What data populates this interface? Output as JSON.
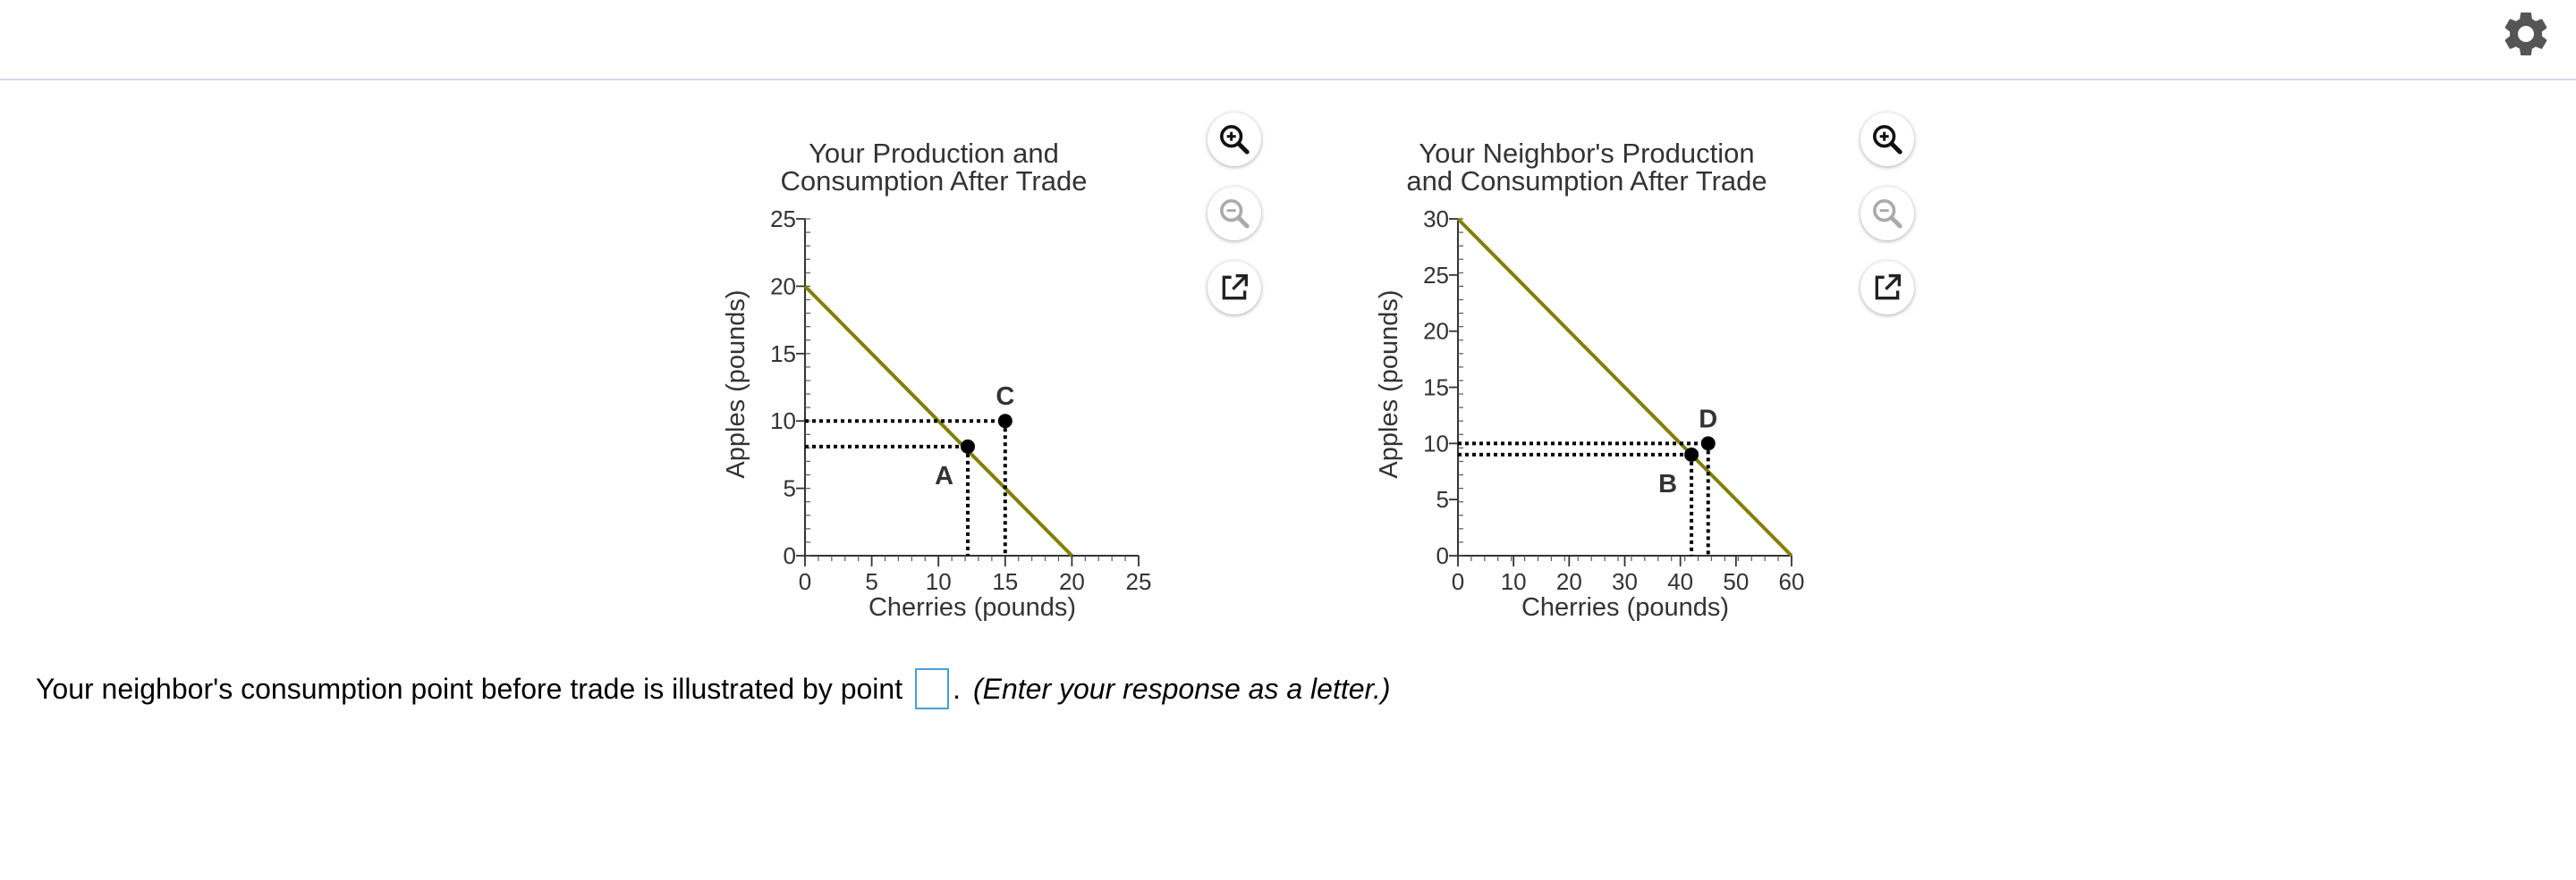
{
  "settings": {
    "icon": "gear-icon"
  },
  "charts": [
    {
      "title_line1": "Your Production and",
      "title_line2": "Consumption After Trade",
      "xlabel": "Cherries (pounds)",
      "ylabel": "Apples (pounds)",
      "controls": [
        "zoom-in-icon",
        "zoom-out-icon",
        "pop-out-icon"
      ]
    },
    {
      "title_line1": "Your Neighbor's Production",
      "title_line2": "and Consumption After Trade",
      "xlabel": "Cherries (pounds)",
      "ylabel": "Apples (pounds)",
      "controls": [
        "zoom-in-icon",
        "zoom-out-icon",
        "pop-out-icon"
      ]
    }
  ],
  "chart_data": [
    {
      "type": "line",
      "title": "Your Production and Consumption After Trade",
      "xlabel": "Cherries (pounds)",
      "ylabel": "Apples (pounds)",
      "xlim": [
        0,
        25
      ],
      "ylim": [
        0,
        25
      ],
      "xticks": [
        0,
        5,
        10,
        15,
        20,
        25
      ],
      "yticks": [
        0,
        5,
        10,
        15,
        20,
        25
      ],
      "line": {
        "x": [
          0,
          20
        ],
        "y": [
          20,
          0
        ],
        "color": "#808000"
      },
      "points": [
        {
          "label": "A",
          "x": 12.2,
          "y": 8.1,
          "label_pos": "below-left"
        },
        {
          "label": "C",
          "x": 15,
          "y": 10,
          "label_pos": "above"
        }
      ]
    },
    {
      "type": "line",
      "title": "Your Neighbor's Production and Consumption After Trade",
      "xlabel": "Cherries (pounds)",
      "ylabel": "Apples (pounds)",
      "xlim": [
        0,
        60
      ],
      "ylim": [
        0,
        30
      ],
      "xticks": [
        0,
        10,
        20,
        30,
        40,
        50,
        60
      ],
      "yticks": [
        0,
        5,
        10,
        15,
        20,
        25,
        30
      ],
      "line": {
        "x": [
          0,
          60
        ],
        "y": [
          30,
          0
        ],
        "color": "#808000"
      },
      "points": [
        {
          "label": "B",
          "x": 42,
          "y": 9,
          "label_pos": "below-left"
        },
        {
          "label": "D",
          "x": 45,
          "y": 10,
          "label_pos": "above"
        }
      ]
    }
  ],
  "question": {
    "text": "Your neighbor's consumption point before trade is illustrated by point",
    "answer_value": "",
    "after_box": ".",
    "hint": "(Enter your response as a letter.)"
  }
}
